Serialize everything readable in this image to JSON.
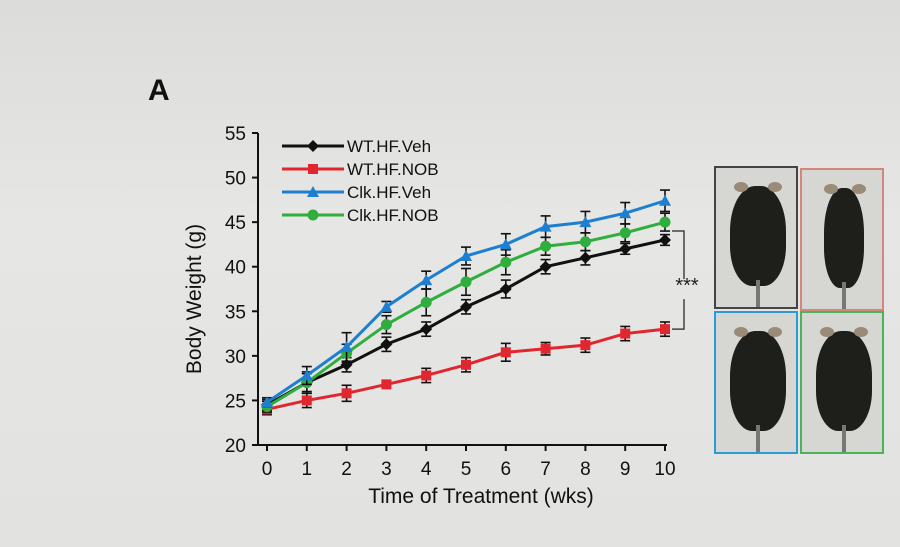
{
  "panel_label": "A",
  "chart_data": {
    "type": "line",
    "title": "",
    "xlabel": "Time of Treatment (wks)",
    "ylabel": "Body Weight (g)",
    "x": [
      0,
      1,
      2,
      3,
      4,
      5,
      6,
      7,
      8,
      9,
      10
    ],
    "xlim": [
      0,
      10
    ],
    "ylim": [
      20,
      55
    ],
    "xticks": [
      "0",
      "1",
      "2",
      "3",
      "4",
      "5",
      "6",
      "7",
      "8",
      "9",
      "10"
    ],
    "yticks": [
      "20",
      "25",
      "30",
      "35",
      "40",
      "45",
      "50",
      "55"
    ],
    "grid": false,
    "legend_position": "top-left",
    "series": [
      {
        "name": "WT.HF.Veh",
        "color": "#111111",
        "marker": "diamond",
        "values": [
          24.5,
          27.0,
          29.0,
          31.3,
          33.0,
          35.5,
          37.5,
          40.0,
          41.0,
          42.0,
          43.0
        ],
        "errors": [
          0.6,
          1.0,
          0.8,
          0.8,
          0.8,
          0.8,
          1.0,
          0.8,
          0.8,
          0.6,
          0.6
        ]
      },
      {
        "name": "WT.HF.NOB",
        "color": "#e0262e",
        "marker": "square",
        "values": [
          24.0,
          25.0,
          25.8,
          26.8,
          27.8,
          29.0,
          30.4,
          30.8,
          31.2,
          32.5,
          33.0
        ],
        "errors": [
          0.6,
          0.8,
          0.9,
          0.3,
          0.8,
          0.8,
          1.0,
          0.7,
          0.8,
          0.8,
          0.8
        ]
      },
      {
        "name": "Clk.HF.Veh",
        "color": "#1e7fd0",
        "marker": "triangle",
        "values": [
          24.8,
          27.8,
          31.0,
          35.5,
          38.5,
          41.2,
          42.5,
          44.5,
          45.0,
          46.0,
          47.4
        ],
        "errors": [
          0.5,
          1.0,
          1.6,
          0.6,
          1.0,
          1.0,
          1.2,
          1.2,
          1.2,
          1.2,
          1.2
        ]
      },
      {
        "name": "Clk.HF.NOB",
        "color": "#2fae3e",
        "marker": "circle",
        "values": [
          24.3,
          27.0,
          30.3,
          33.5,
          36.0,
          38.3,
          40.5,
          42.3,
          42.8,
          43.8,
          45.0
        ],
        "errors": [
          0.6,
          1.2,
          1.0,
          1.0,
          1.5,
          1.5,
          1.4,
          1.0,
          1.0,
          1.0,
          1.0
        ]
      }
    ],
    "annotations": [
      {
        "text": "***",
        "between": [
          "WT.HF.Veh",
          "WT.HF.NOB"
        ],
        "at_x": 10
      }
    ]
  },
  "photos": [
    {
      "group": "WT.HF.Veh",
      "border": "#444444"
    },
    {
      "group": "WT.HF.NOB",
      "border": "#d2867c"
    },
    {
      "group": "Clk.HF.Veh",
      "border": "#2d9ad6"
    },
    {
      "group": "Clk.HF.NOB",
      "border": "#4db35a"
    }
  ]
}
